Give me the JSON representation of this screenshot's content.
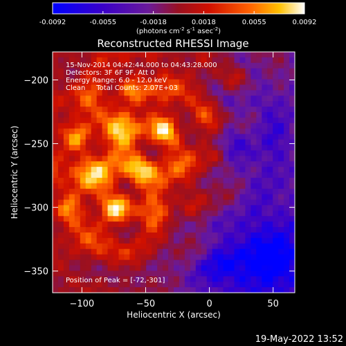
{
  "chart_data": {
    "type": "heatmap",
    "title": "Reconstructed RHESSI Image",
    "xlabel": "Heliocentric X (arcsec)",
    "ylabel": "Heliocentric Y (arcsec)",
    "xlim": [
      -123,
      67
    ],
    "ylim": [
      -367,
      -178
    ],
    "xticks": [
      -100,
      -50,
      0,
      50
    ],
    "yticks": [
      -200,
      -250,
      -300,
      -350
    ],
    "colorbar": {
      "range": [
        -0.0092,
        0.0092
      ],
      "ticks": [
        "-0.0092",
        "-0.0055",
        "-0.0018",
        "0.0018",
        "0.0055",
        "0.0092"
      ],
      "label_main": "(photons cm",
      "label_sup1": "-2",
      "label_mid1": " s",
      "label_sup2": "-1",
      "label_mid2": " asec",
      "label_sup3": "-2",
      "label_end": ")",
      "colors": [
        "#0000ff",
        "#3a00c8",
        "#6a1a9a",
        "#9a1020",
        "#d01000",
        "#ff6000",
        "#ffc000",
        "#ffffff"
      ]
    },
    "peak": [
      -72,
      -301
    ],
    "hotspots": [
      {
        "x": -72,
        "y": -301,
        "amp": 1.0
      },
      {
        "x": -104,
        "y": -246,
        "amp": 0.8
      },
      {
        "x": -35,
        "y": -240,
        "amp": 0.85
      },
      {
        "x": -62,
        "y": -208,
        "amp": 0.7
      },
      {
        "x": -55,
        "y": -270,
        "amp": 0.55
      },
      {
        "x": -112,
        "y": -300,
        "amp": 0.6
      },
      {
        "x": 5,
        "y": -260,
        "amp": 0.5
      },
      {
        "x": 20,
        "y": -200,
        "amp": 0.45
      },
      {
        "x": -15,
        "y": -300,
        "amp": 0.4
      }
    ],
    "coldspots": [
      {
        "x": 30,
        "y": -255,
        "amp": 0.55
      },
      {
        "x": 50,
        "y": -340,
        "amp": 0.8
      },
      {
        "x": 10,
        "y": -345,
        "amp": 0.5
      },
      {
        "x": 45,
        "y": -220,
        "amp": 0.35
      }
    ],
    "annotations": {
      "time": "15-Nov-2014 04:42:44.000 to 04:43:28.000",
      "detectors": "Detectors: 3F 6F 9F, Att 0",
      "energy": "Energy Range: 6.0 - 12.0 keV",
      "method": "Clean     Total Counts: 2.07E+03",
      "peak_label": "Position of Peak = [-72,-301]"
    },
    "footer_date": "19-May-2022 13:52"
  }
}
